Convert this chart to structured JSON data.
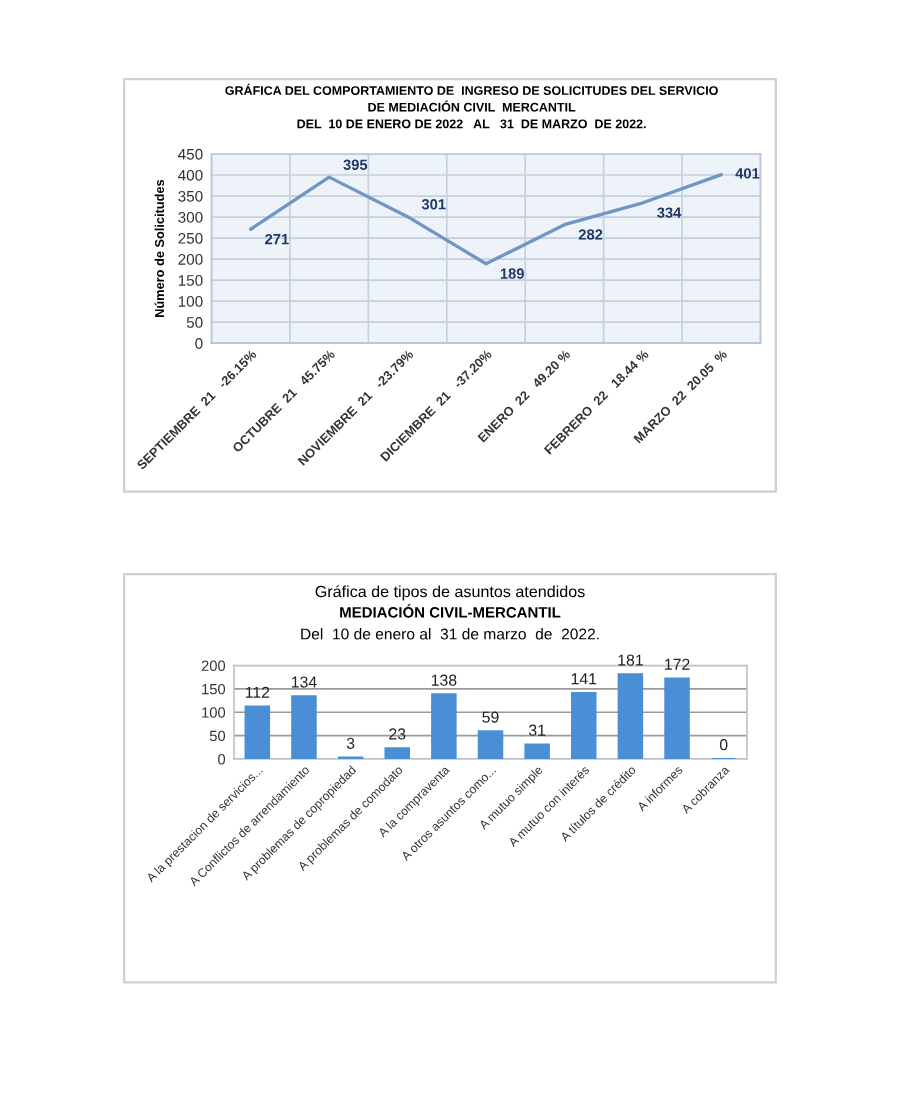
{
  "chart_data": [
    {
      "type": "line",
      "title": "GRÁFICA DEL COMPORTAMIENTO DE  INGRESO DE SOLICITUDES DEL SERVICIO\nDE MEDIACIÓN CIVIL  MERCANTIL\nDEL  10 DE ENERO DE 2022   AL   31  DE MARZO  DE 2022.",
      "ylabel": "Número de Solicitudes",
      "categories": [
        "SEPTIEMBRE  21   -26.15%",
        "OCTUBRE  21   45.75%",
        "NOVIEMBRE  21   -23.79%",
        "DICIEMBRE  21   -37.20%",
        "ENERO  22   49.20 %",
        "FEBRERO  22   18.44 %",
        "MARZO  22  20.05  %"
      ],
      "values": [
        271,
        395,
        301,
        189,
        282,
        334,
        401
      ],
      "color": "#7196c4",
      "ylim": [
        0,
        450
      ],
      "yticks": [
        0,
        50,
        100,
        150,
        200,
        250,
        300,
        350,
        400,
        450
      ],
      "grid": true,
      "data_labels": true
    },
    {
      "type": "bar",
      "title": "Gráfica de tipos de asuntos atendidos",
      "subtitle": "MEDIACIÓN CIVIL-MERCANTIL",
      "annotations": [
        "Del  10 de enero al  31 de marzo  de  2022."
      ],
      "categories": [
        "A la prestacion de servicios...",
        "A Conflictos de arrendamiento",
        "A problemas de copropiedad",
        "A problemas de comodato",
        "A la compraventa",
        "A otros asuntos como...",
        "A mutuo simple",
        "A mutuo con interés",
        "A títulos de crédito",
        "A informes",
        "A cobranza"
      ],
      "values": [
        112,
        134,
        3,
        23,
        138,
        59,
        31,
        141,
        181,
        172,
        0
      ],
      "color": "#4a8fd6",
      "ylim": [
        0,
        200
      ],
      "yticks": [
        0,
        50,
        100,
        150,
        200
      ],
      "grid": "y",
      "data_labels": true
    }
  ]
}
